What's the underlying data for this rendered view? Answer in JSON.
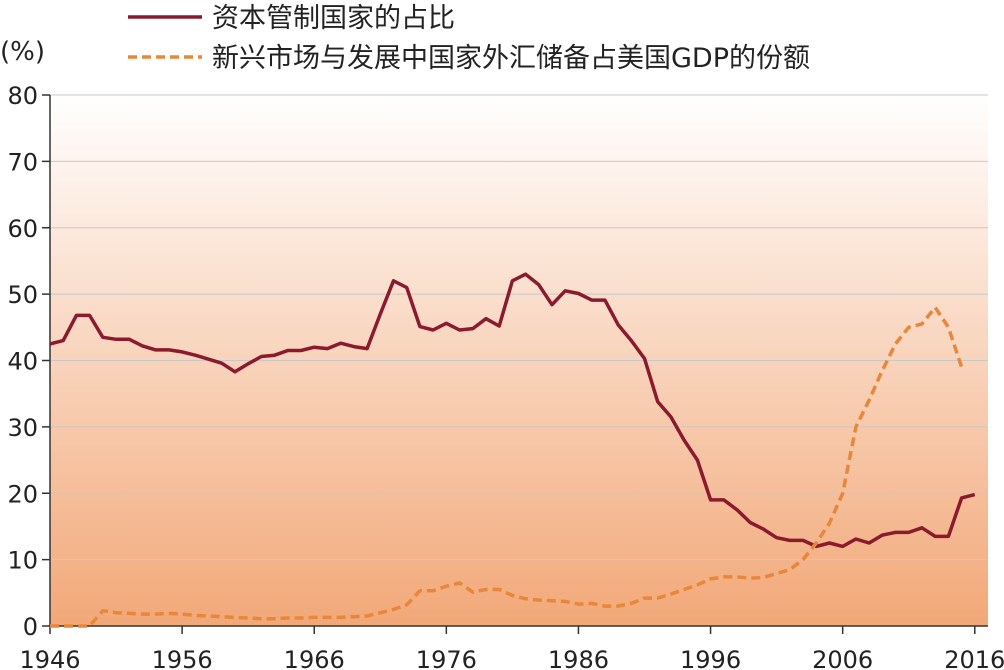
{
  "chart_data": {
    "type": "line",
    "y_label": "(%)",
    "x": [
      1946,
      1947,
      1948,
      1949,
      1950,
      1951,
      1952,
      1953,
      1954,
      1955,
      1956,
      1957,
      1958,
      1959,
      1960,
      1961,
      1962,
      1963,
      1964,
      1965,
      1966,
      1967,
      1968,
      1969,
      1970,
      1971,
      1972,
      1973,
      1974,
      1975,
      1976,
      1977,
      1978,
      1979,
      1980,
      1981,
      1982,
      1983,
      1984,
      1985,
      1986,
      1987,
      1988,
      1989,
      1990,
      1991,
      1992,
      1993,
      1994,
      1995,
      1996,
      1997,
      1998,
      1999,
      2000,
      2001,
      2002,
      2003,
      2004,
      2005,
      2006,
      2007,
      2008,
      2009,
      2010,
      2011,
      2012,
      2013,
      2014,
      2015,
      2016
    ],
    "series": [
      {
        "name": "资本管制国家的占比",
        "color": "#8b1a2e",
        "dashed": false,
        "values": [
          42.5,
          43,
          46.8,
          46.8,
          43.5,
          43.2,
          43.2,
          42.2,
          41.6,
          41.6,
          41.3,
          40.8,
          40.2,
          39.6,
          38.3,
          39.5,
          40.6,
          40.8,
          41.5,
          41.5,
          42,
          41.8,
          42.6,
          42.1,
          41.8,
          47,
          52,
          51,
          45.1,
          44.6,
          45.6,
          44.6,
          44.8,
          46.3,
          45.2,
          52,
          53,
          51.4,
          48.4,
          50.5,
          50.1,
          49.1,
          49.1,
          45.4,
          43,
          40.3,
          33.8,
          31.5,
          28,
          25,
          19,
          19,
          17.5,
          15.6,
          14.6,
          13.3,
          12.9,
          12.9,
          12,
          12.5,
          12,
          13.1,
          12.5,
          13.7,
          14.1,
          14.1,
          14.8,
          13.5,
          13.5,
          19.3,
          19.8
        ]
      },
      {
        "name": "新兴市场与发展中国家外汇储备占美国GDP的份额",
        "color": "#e8873a",
        "dashed": true,
        "values": [
          0,
          0,
          0,
          0,
          2.3,
          2,
          1.9,
          1.8,
          1.8,
          1.9,
          1.8,
          1.6,
          1.5,
          1.4,
          1.3,
          1.2,
          1.1,
          1.1,
          1.2,
          1.2,
          1.3,
          1.3,
          1.3,
          1.4,
          1.5,
          2,
          2.5,
          3.2,
          5.3,
          5.3,
          6,
          6.5,
          5.1,
          5.5,
          5.5,
          4.6,
          4.1,
          3.9,
          3.8,
          3.7,
          3.3,
          3.4,
          3,
          3,
          3.4,
          4.2,
          4.2,
          4.8,
          5.5,
          6.2,
          7.1,
          7.4,
          7.4,
          7.2,
          7.3,
          7.9,
          8.5,
          10,
          12.5,
          15.5,
          20,
          30,
          34,
          38.5,
          42.5,
          45,
          45.5,
          48,
          45,
          39,
          null
        ]
      }
    ],
    "xlim": [
      1946,
      2017
    ],
    "xticks": [
      1946,
      1956,
      1966,
      1976,
      1986,
      1996,
      2006,
      2016
    ],
    "ylim": [
      0,
      80
    ],
    "yticks": [
      0,
      10,
      20,
      30,
      40,
      50,
      60,
      70,
      80
    ],
    "grid": true
  }
}
